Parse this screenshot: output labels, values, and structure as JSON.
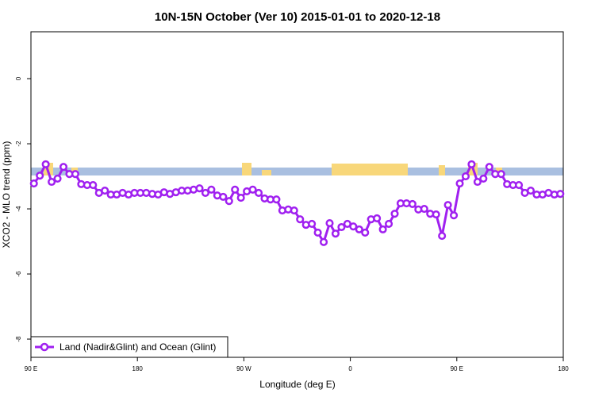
{
  "chart_data": {
    "type": "line",
    "title": "10N-15N October (Ver 10)   2015-01-01 to 2020-12-18",
    "x_label": "Longitude (deg E)",
    "y_label": "XCO2 - MLO trend (ppm)",
    "xlim": [
      90,
      540
    ],
    "ylim": [
      -8.56,
      1.44
    ],
    "xticks": [
      {
        "value": 90,
        "label": "90 E"
      },
      180,
      {
        "value": 270,
        "label": "90 W"
      },
      {
        "value": 360,
        "label": "0"
      },
      {
        "value": 450,
        "label": "90 E"
      },
      {
        "value": 540,
        "label": "180"
      }
    ],
    "yticks": [
      0,
      -2,
      -4,
      -6,
      -8
    ],
    "grid": false,
    "legend": "bottom-left",
    "x": [
      92.5,
      97.5,
      102.5,
      107.5,
      112.5,
      117.5,
      122.5,
      127.5,
      132.5,
      137.5,
      142.5,
      147.5,
      152.5,
      157.5,
      162.5,
      167.5,
      172.5,
      177.5,
      182.5,
      187.5,
      192.5,
      197.5,
      202.5,
      207.5,
      212.5,
      217.5,
      222.5,
      227.5,
      232.5,
      237.5,
      242.5,
      247.5,
      252.5,
      257.5,
      262.5,
      267.5,
      272.5,
      277.5,
      282.5,
      287.5,
      292.5,
      297.5,
      302.5,
      307.5,
      312.5,
      317.5,
      322.5,
      327.5,
      332.5,
      337.5,
      342.5,
      347.5,
      352.5,
      357.5,
      362.5,
      367.5,
      372.5,
      377.5,
      382.5,
      387.5,
      392.5,
      397.5,
      402.5,
      407.5,
      412.5,
      417.5,
      422.5,
      427.5,
      432.5,
      437.5,
      442.5,
      447.5,
      452.5,
      457.5,
      462.5,
      467.5,
      472.5,
      477.5,
      482.5,
      487.5,
      492.5,
      497.5,
      502.5,
      507.5,
      512.5,
      517.5,
      522.5,
      527.5,
      532.5,
      537.5
    ],
    "series": [
      {
        "name": "Land (Nadir&Glint) and Ocean (Glint)",
        "color": "#a020f0",
        "values": [
          -3.22,
          -2.98,
          -2.63,
          -3.17,
          -3.07,
          -2.71,
          -2.93,
          -2.93,
          -3.24,
          -3.27,
          -3.27,
          -3.51,
          -3.44,
          -3.56,
          -3.56,
          -3.51,
          -3.56,
          -3.51,
          -3.51,
          -3.51,
          -3.54,
          -3.56,
          -3.49,
          -3.54,
          -3.49,
          -3.44,
          -3.44,
          -3.41,
          -3.37,
          -3.51,
          -3.41,
          -3.59,
          -3.63,
          -3.76,
          -3.41,
          -3.66,
          -3.46,
          -3.41,
          -3.51,
          -3.68,
          -3.71,
          -3.71,
          -4.05,
          -4.02,
          -4.05,
          -4.32,
          -4.49,
          -4.46,
          -4.73,
          -5.02,
          -4.44,
          -4.76,
          -4.56,
          -4.46,
          -4.54,
          -4.63,
          -4.73,
          -4.32,
          -4.29,
          -4.63,
          -4.46,
          -4.15,
          -3.83,
          -3.83,
          -3.85,
          -4.02,
          -4.0,
          -4.15,
          -4.17,
          -4.83,
          -3.88,
          -4.2,
          -3.22,
          -3.0,
          -2.63,
          -3.17,
          -3.07,
          -2.71,
          -2.93,
          -2.93,
          -3.24,
          -3.27,
          -3.27,
          -3.51,
          -3.44,
          -3.56,
          -3.56,
          -3.51,
          -3.56,
          -3.54
        ]
      }
    ]
  }
}
